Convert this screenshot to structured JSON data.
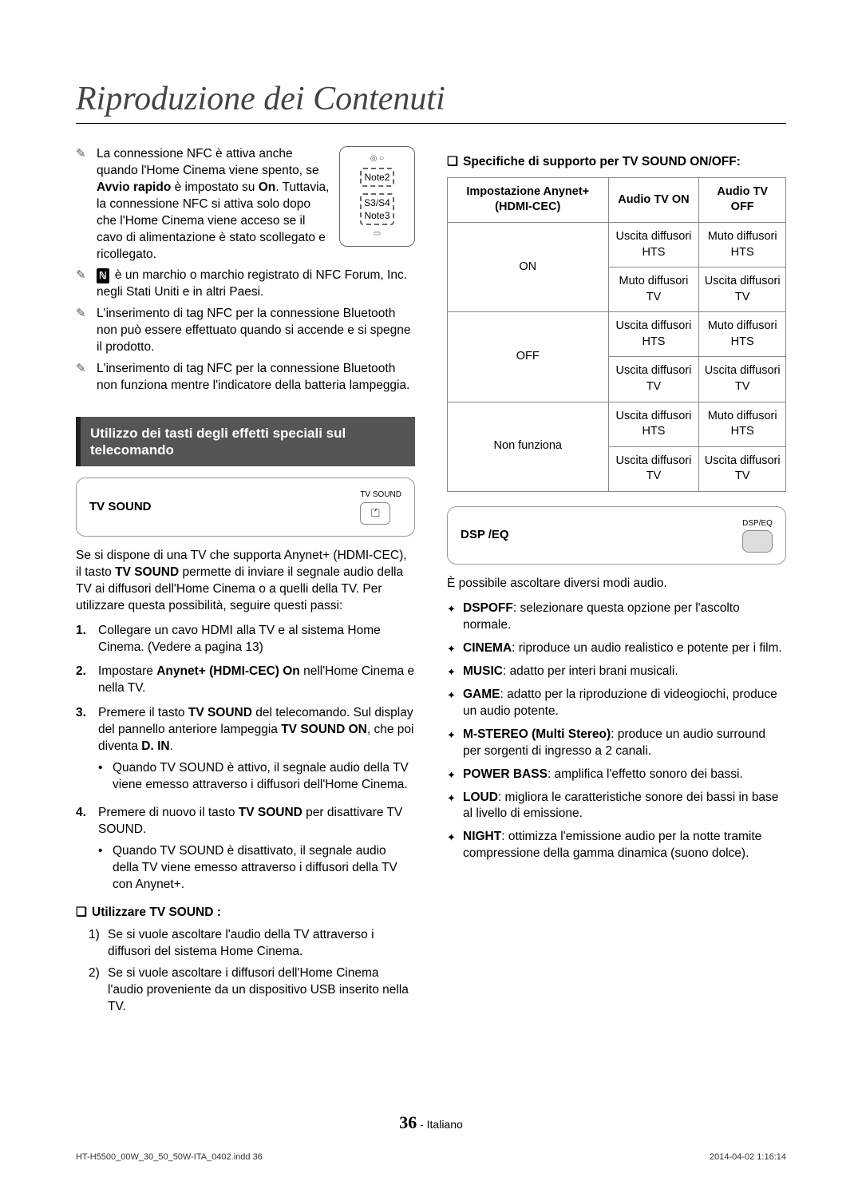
{
  "title": "Riproduzione dei Contenuti",
  "left": {
    "notes": [
      {
        "pre": "",
        "text": "La connessione NFC è attiva anche quando l'Home Cinema viene spento, se <b>Avvio rapido</b> è impostato su <b>On</b>. Tuttavia, la connessione NFC si attiva solo dopo che l'Home Cinema viene acceso se il cavo di alimentazione è stato scollegato e ricollegato."
      },
      {
        "pre": "badge",
        "text": "è un marchio o marchio registrato di NFC Forum, Inc. negli Stati Uniti e in altri Paesi."
      },
      {
        "pre": "",
        "text": "L'inserimento di tag NFC per la connessione Bluetooth non può essere effettuato quando si accende e si spegne il prodotto."
      },
      {
        "pre": "",
        "text": "L'inserimento di tag NFC per la connessione Bluetooth non funziona mentre l'indicatore della batteria lampeggia."
      }
    ],
    "diagram": {
      "l1": "Note2",
      "l2": "S3/S4",
      "l3": "Note3"
    },
    "section": "Utilizzo dei tasti degli effetti speciali sul telecomando",
    "tv_sound_label": "TV SOUND",
    "tv_sound_icon_label": "TV SOUND",
    "tv_sound_intro": "Se si dispone di una TV che supporta Anynet+ (HDMI-CEC), il tasto <b>TV SOUND</b> permette di inviare il segnale audio della TV ai diffusori dell'Home Cinema o a quelli della TV. Per utilizzare questa possibilità, seguire questi passi:",
    "steps": [
      {
        "n": "1.",
        "html": "Collegare un cavo HDMI alla TV e al sistema Home Cinema. (Vedere a pagina 13)"
      },
      {
        "n": "2.",
        "html": "Impostare <b>Anynet+ (HDMI-CEC) On</b> nell'Home Cinema e nella TV."
      },
      {
        "n": "3.",
        "html": "Premere il tasto <b>TV SOUND</b> del telecomando. Sul display del pannello anteriore lampeggia <b>TV SOUND ON</b>, che poi diventa <b>D. IN</b>.",
        "sub": [
          "Quando TV SOUND è attivo, il segnale audio della TV viene emesso attraverso i diffusori dell'Home Cinema."
        ]
      },
      {
        "n": "4.",
        "html": "Premere di nuovo il tasto <b>TV SOUND</b> per disattivare TV SOUND.",
        "sub": [
          "Quando TV SOUND è disattivato, il segnale audio della TV viene emesso attraverso i diffusori della TV con Anynet+."
        ]
      }
    ],
    "use_heading": "Utilizzare TV SOUND :",
    "use_list": [
      {
        "n": "1)",
        "t": "Se si vuole ascoltare l'audio della TV attraverso i diffusori del sistema Home Cinema."
      },
      {
        "n": "2)",
        "t": "Se si vuole ascoltare i diffusori dell'Home Cinema l'audio proveniente da un dispositivo USB inserito nella TV."
      }
    ]
  },
  "right": {
    "spec_heading": "Specifiche di supporto per TV SOUND ON/OFF:",
    "table": {
      "headers": [
        "Impostazione Anynet+ (HDMI-CEC)",
        "Audio TV ON",
        "Audio TV OFF"
      ],
      "rows": [
        {
          "setting": "ON",
          "r1": [
            "Uscita diffusori HTS",
            "Muto diffusori HTS"
          ],
          "r2": [
            "Muto diffusori TV",
            "Uscita diffusori TV"
          ]
        },
        {
          "setting": "OFF",
          "r1": [
            "Uscita diffusori HTS",
            "Muto diffusori HTS"
          ],
          "r2": [
            "Uscita diffusori TV",
            "Uscita diffusori TV"
          ]
        },
        {
          "setting": "Non funziona",
          "r1": [
            "Uscita diffusori HTS",
            "Muto diffusori HTS"
          ],
          "r2": [
            "Uscita diffusori TV",
            "Uscita diffusori TV"
          ]
        }
      ]
    },
    "dsp_label": "DSP /EQ",
    "dsp_icon_label": "DSP/EQ",
    "dsp_intro": "È possibile ascoltare diversi modi audio.",
    "modes": [
      "<b>DSPOFF</b>: selezionare questa opzione per l'ascolto normale.",
      "<b>CINEMA</b>: riproduce un audio realistico e potente per i film.",
      "<b>MUSIC</b>: adatto per interi brani musicali.",
      "<b>GAME</b>: adatto per la riproduzione di videogiochi, produce un audio potente.",
      "<b>M-STEREO (Multi Stereo)</b>: produce un audio surround per sorgenti di ingresso a 2 canali.",
      "<b>POWER BASS</b>: amplifica l'effetto sonoro dei bassi.",
      "<b>LOUD</b>: migliora le caratteristiche sonore dei bassi in base al livello di emissione.",
      "<b>NIGHT</b>: ottimizza l'emissione audio per la notte tramite compressione della gamma dinamica (suono dolce)."
    ]
  },
  "footer": {
    "page": "36",
    "lang": "- Italiano",
    "file": "HT-H5500_00W_30_50_50W-ITA_0402.indd   36",
    "date": "2014-04-02    1:16:14"
  }
}
